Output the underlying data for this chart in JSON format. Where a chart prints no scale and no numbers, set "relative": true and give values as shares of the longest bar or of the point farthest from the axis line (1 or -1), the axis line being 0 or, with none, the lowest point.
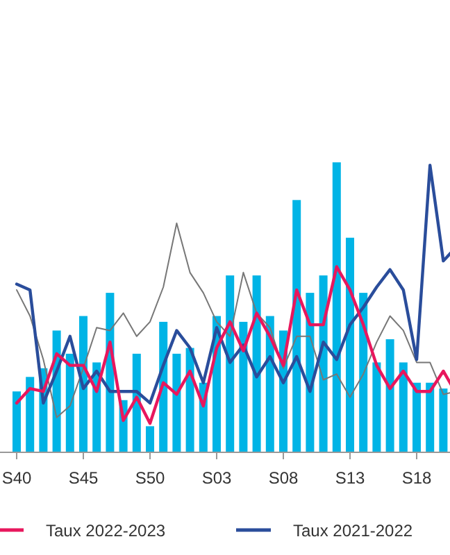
{
  "chart_data": {
    "type": "bar",
    "relative": true,
    "legend": "bottom",
    "grid": false,
    "categories": [
      "S40",
      null,
      null,
      null,
      null,
      "S45",
      null,
      null,
      null,
      null,
      "S50",
      null,
      null,
      null,
      null,
      "S03",
      null,
      null,
      null,
      null,
      "S08",
      null,
      null,
      null,
      null,
      "S13",
      null,
      null,
      null,
      null,
      "S18",
      null,
      null,
      null
    ],
    "series": [
      {
        "color": "#00b4e6",
        "values": [
          0.21,
          0.26,
          0.29,
          0.42,
          0.34,
          0.47,
          0.31,
          0.55,
          0.18,
          0.34,
          0.09,
          0.45,
          0.34,
          0.36,
          0.24,
          0.47,
          0.61,
          0.45,
          0.61,
          0.47,
          0.42,
          0.87,
          0.55,
          0.61,
          1.0,
          0.74,
          0.55,
          0.31,
          0.39,
          0.31,
          0.24,
          0.24,
          0.22,
          null
        ]
      },
      {
        "type": "line",
        "color": "#777777",
        "values": [
          0.56,
          0.47,
          0.32,
          0.12,
          0.16,
          0.29,
          0.43,
          0.42,
          0.48,
          0.4,
          0.45,
          0.57,
          0.79,
          0.62,
          0.55,
          0.45,
          0.4,
          0.62,
          0.48,
          0.43,
          0.29,
          0.4,
          0.4,
          0.25,
          0.27,
          0.19,
          0.27,
          0.38,
          0.47,
          0.42,
          0.31,
          0.31,
          0.2,
          0.21
        ]
      },
      {
        "type": "line",
        "name": "Taux 2021-2022",
        "color": "#2a4d9b",
        "values": [
          0.58,
          0.56,
          0.17,
          0.28,
          0.4,
          0.22,
          0.28,
          0.21,
          0.21,
          0.21,
          0.17,
          0.3,
          0.42,
          0.36,
          0.24,
          0.43,
          0.31,
          0.37,
          0.26,
          0.33,
          0.24,
          0.33,
          0.21,
          0.38,
          0.32,
          0.44,
          0.5,
          0.57,
          0.63,
          0.56,
          0.32,
          0.99,
          0.66,
          0.71
        ]
      },
      {
        "type": "line",
        "name": "Taux 2022-2023",
        "color": "#e8175d",
        "values": [
          0.17,
          0.22,
          0.21,
          0.34,
          0.3,
          0.3,
          0.21,
          0.38,
          0.11,
          0.19,
          0.1,
          0.24,
          0.2,
          0.28,
          0.16,
          0.36,
          0.45,
          0.35,
          0.48,
          0.4,
          0.3,
          0.56,
          0.44,
          0.44,
          0.64,
          0.56,
          0.44,
          0.3,
          0.22,
          0.28,
          0.21,
          0.21,
          0.28,
          0.2
        ]
      }
    ]
  }
}
